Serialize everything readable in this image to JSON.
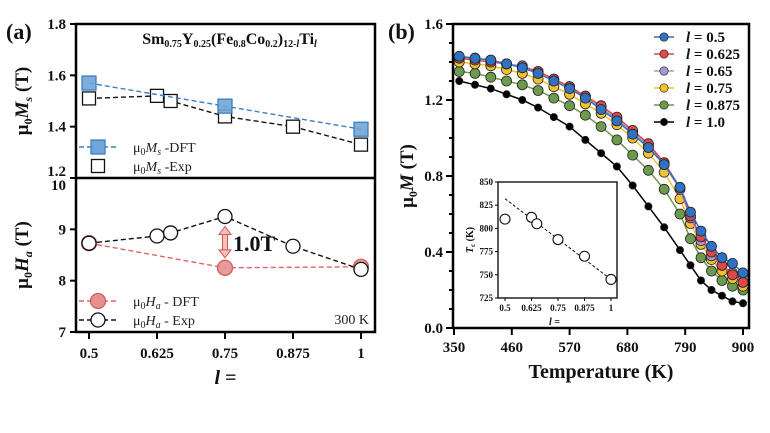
{
  "chart_data": [
    {
      "panel": "(a)",
      "type": "line",
      "title": "Sm0.75Y0.25(Fe0.8Co0.2)12-lTil",
      "title_parts": {
        "a": "Sm",
        "as": "0.75",
        "b": "Y",
        "bs": "0.25",
        "c": "(Fe",
        "cs": "0.8",
        "d": "Co",
        "ds": "0.2",
        "e": ")",
        "es": "12-",
        "esi": "l",
        "f": "Ti",
        "fsi": "l"
      },
      "xlabel": "l =",
      "x_ticks": [
        0.5,
        0.625,
        0.75,
        0.875,
        1
      ],
      "x_tick_labels": [
        "0.5",
        "0.625",
        "0.75",
        "0.875",
        "1"
      ],
      "xlim": [
        0.47,
        1.03
      ],
      "subplots": [
        {
          "name": "top",
          "ylabel": "μ0Ms (T)",
          "ylim": [
            1.2,
            1.8
          ],
          "y_ticks": [
            1.2,
            1.4,
            1.6,
            1.8
          ],
          "y_tick_labels": [
            "1.2",
            "1.4",
            "1.6",
            "1.8"
          ],
          "series": [
            {
              "name": "μ0Ms -DFT",
              "marker": "square-filled",
              "color": "#5b9bd5",
              "line": "dashed",
              "x": [
                0.5,
                0.75,
                1
              ],
              "y": [
                1.57,
                1.48,
                1.39
              ]
            },
            {
              "name": "μ0Ms -Exp",
              "marker": "square-open",
              "color": "#111111",
              "line": "dashed",
              "x": [
                0.5,
                0.625,
                0.65,
                0.75,
                0.875,
                1
              ],
              "y": [
                1.51,
                1.52,
                1.5,
                1.44,
                1.4,
                1.33
              ]
            }
          ],
          "legend": [
            {
              "sym": "μ",
              "sub": "0",
              "var": "M",
              "vsub": "s",
              "suffix": " -DFT"
            },
            {
              "sym": "μ",
              "sub": "0",
              "var": "M",
              "vsub": "s",
              "suffix": " -Exp"
            }
          ]
        },
        {
          "name": "bottom",
          "ylabel": "μ0Ha (T)",
          "ylim": [
            7,
            10
          ],
          "y_ticks": [
            7,
            8,
            9,
            10
          ],
          "y_tick_labels": [
            "7",
            "8",
            "9",
            "10"
          ],
          "series": [
            {
              "name": "μ0Ha - DFT",
              "marker": "circle-filled",
              "color": "#e07070",
              "line": "dashed",
              "x": [
                0.5,
                0.75,
                1
              ],
              "y": [
                8.73,
                8.25,
                8.27
              ]
            },
            {
              "name": "μ0Ha - Exp",
              "marker": "circle-open",
              "color": "#111111",
              "line": "dashed",
              "x": [
                0.5,
                0.625,
                0.65,
                0.75,
                0.875,
                1
              ],
              "y": [
                8.73,
                8.87,
                8.93,
                9.25,
                8.67,
                8.22
              ]
            }
          ],
          "legend": [
            {
              "sym": "μ",
              "sub": "0",
              "var": "H",
              "vsub": "a",
              "suffix": " - DFT"
            },
            {
              "sym": "μ",
              "sub": "0",
              "var": "H",
              "vsub": "a",
              "suffix": " - Exp"
            }
          ],
          "annotations": [
            {
              "text": "1.0T",
              "color": "#d9534f",
              "type": "double-arrow",
              "x": 0.75,
              "y_from": 8.25,
              "y_to": 9.25
            },
            {
              "text": "300 K",
              "position": "bottom-right"
            }
          ]
        }
      ]
    },
    {
      "panel": "(b)",
      "type": "line",
      "xlabel": "Temperature (K)",
      "ylabel": "μ0M (T)",
      "xlim": [
        350,
        910
      ],
      "ylim": [
        0,
        1.6
      ],
      "x_ticks": [
        350,
        460,
        570,
        680,
        790,
        900
      ],
      "x_tick_labels": [
        "350",
        "460",
        "570",
        "680",
        "790",
        "900"
      ],
      "y_ticks": [
        0,
        0.4,
        0.8,
        1.2,
        1.6
      ],
      "y_tick_labels": [
        "0.0",
        "0.4",
        "0.8",
        "1.2",
        "1.6"
      ],
      "legend_position": "top-right",
      "series": [
        {
          "name": "l = 0.5",
          "label_prefix": "l",
          "label_value": " = 0.5",
          "color": "#2f72c4",
          "x": [
            360,
            390,
            420,
            450,
            480,
            510,
            540,
            570,
            600,
            630,
            660,
            690,
            720,
            750,
            780,
            800,
            820,
            840,
            860,
            880,
            900
          ],
          "y": [
            1.43,
            1.42,
            1.41,
            1.39,
            1.37,
            1.34,
            1.3,
            1.26,
            1.21,
            1.15,
            1.09,
            1.02,
            0.95,
            0.86,
            0.74,
            0.61,
            0.51,
            0.43,
            0.37,
            0.34,
            0.29
          ]
        },
        {
          "name": "l = 0.625",
          "label_prefix": "l",
          "label_value": " = 0.625",
          "color": "#e04848",
          "x": [
            360,
            390,
            420,
            450,
            480,
            510,
            540,
            570,
            600,
            630,
            660,
            690,
            720,
            750,
            780,
            800,
            820,
            840,
            860,
            880,
            900
          ],
          "y": [
            1.42,
            1.41,
            1.4,
            1.39,
            1.37,
            1.35,
            1.31,
            1.27,
            1.22,
            1.17,
            1.11,
            1.04,
            0.97,
            0.87,
            0.74,
            0.59,
            0.48,
            0.4,
            0.33,
            0.28,
            0.24
          ]
        },
        {
          "name": "l = 0.65",
          "label_prefix": "l",
          "label_value": " = 0.65",
          "color": "#a898d0",
          "x": [
            360,
            390,
            420,
            450,
            480,
            510,
            540,
            570,
            600,
            630,
            660,
            690,
            720,
            750,
            780,
            800,
            820,
            840,
            860,
            880,
            900
          ],
          "y": [
            1.42,
            1.42,
            1.41,
            1.39,
            1.38,
            1.35,
            1.31,
            1.27,
            1.22,
            1.16,
            1.1,
            1.03,
            0.96,
            0.86,
            0.73,
            0.58,
            0.46,
            0.38,
            0.33,
            0.29,
            0.26
          ]
        },
        {
          "name": "l = 0.75",
          "label_prefix": "l",
          "label_value": " = 0.75",
          "color": "#f2c12e",
          "x": [
            360,
            390,
            420,
            450,
            480,
            510,
            540,
            570,
            600,
            630,
            660,
            690,
            720,
            750,
            780,
            800,
            820,
            840,
            860,
            880,
            900
          ],
          "y": [
            1.4,
            1.39,
            1.38,
            1.36,
            1.34,
            1.31,
            1.27,
            1.23,
            1.18,
            1.13,
            1.07,
            1.0,
            0.92,
            0.82,
            0.68,
            0.55,
            0.44,
            0.36,
            0.3,
            0.26,
            0.22
          ]
        },
        {
          "name": "l = 0.875",
          "label_prefix": "l",
          "label_value": " = 0.875",
          "color": "#6e9a4e",
          "x": [
            360,
            390,
            420,
            450,
            480,
            510,
            540,
            570,
            600,
            630,
            660,
            690,
            720,
            750,
            780,
            800,
            820,
            840,
            860,
            880,
            900
          ],
          "y": [
            1.35,
            1.34,
            1.32,
            1.3,
            1.28,
            1.25,
            1.21,
            1.17,
            1.12,
            1.06,
            0.99,
            0.91,
            0.83,
            0.73,
            0.6,
            0.47,
            0.37,
            0.3,
            0.25,
            0.22,
            0.2
          ]
        },
        {
          "name": "l = 1.0",
          "label_prefix": "l",
          "label_value": " = 1.0",
          "color": "#000000",
          "x": [
            360,
            390,
            420,
            450,
            480,
            510,
            540,
            570,
            600,
            630,
            660,
            690,
            720,
            750,
            780,
            800,
            820,
            840,
            860,
            880,
            900
          ],
          "y": [
            1.3,
            1.28,
            1.26,
            1.23,
            1.2,
            1.16,
            1.11,
            1.06,
            0.99,
            0.92,
            0.85,
            0.75,
            0.64,
            0.53,
            0.41,
            0.33,
            0.25,
            0.2,
            0.17,
            0.14,
            0.13
          ]
        }
      ],
      "inset": {
        "type": "scatter",
        "ylabel": "Tc (K)",
        "xlabel": "l =",
        "xlim": [
          0.47,
          1.02
        ],
        "ylim": [
          725,
          850
        ],
        "x_ticks": [
          0.5,
          0.625,
          0.75,
          0.875,
          1
        ],
        "x_tick_labels": [
          "0.5",
          "0.625",
          "0.75",
          "0.875",
          "1"
        ],
        "y_ticks": [
          725,
          750,
          775,
          800,
          825,
          850
        ],
        "y_tick_labels": [
          "725",
          "750",
          "775",
          "800",
          "825",
          "850"
        ],
        "points": {
          "x": [
            0.5,
            0.625,
            0.65,
            0.75,
            0.875,
            1
          ],
          "y": [
            810,
            812,
            805,
            788,
            770,
            745
          ]
        },
        "fit_line": {
          "x": [
            0.5,
            1
          ],
          "y": [
            832,
            745
          ]
        }
      }
    }
  ],
  "panel_labels": {
    "a": "(a)",
    "b": "(b)"
  }
}
